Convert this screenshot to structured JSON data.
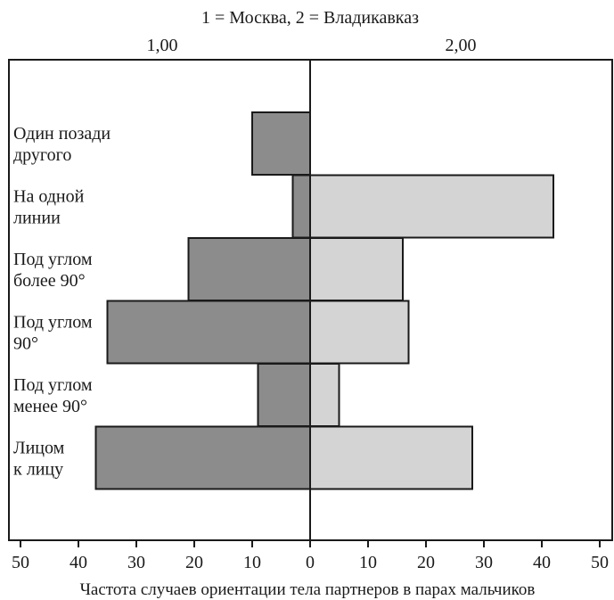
{
  "chart_data": {
    "type": "bar",
    "orientation": "horizontal",
    "layout": "diverging",
    "title": "1 = Москва, 2 = Владикавказ",
    "group_labels": [
      "1,00",
      "2,00"
    ],
    "categories": [
      [
        "Один позади",
        "другого"
      ],
      [
        "На одной",
        "линии"
      ],
      [
        "Под углом",
        "более 90°"
      ],
      [
        "Под углом",
        "90°"
      ],
      [
        "Под углом",
        "менее 90°"
      ],
      [
        "Лицом",
        "к лицу"
      ]
    ],
    "series": [
      {
        "name": "1,00",
        "direction": "left",
        "color": "#8c8c8c",
        "values": [
          10,
          3,
          21,
          35,
          9,
          37
        ]
      },
      {
        "name": "2,00",
        "direction": "right",
        "color": "#d4d4d4",
        "values": [
          0,
          42,
          16,
          17,
          5,
          28
        ]
      }
    ],
    "xticks": [
      "50",
      "40",
      "30",
      "20",
      "10",
      "0",
      "10",
      "20",
      "30",
      "40",
      "50"
    ],
    "xlim": [
      -50,
      50
    ],
    "xlabel": "Частота случаев ориентации тела партнеров в парах мальчиков",
    "ylabel": "",
    "grid": false
  }
}
